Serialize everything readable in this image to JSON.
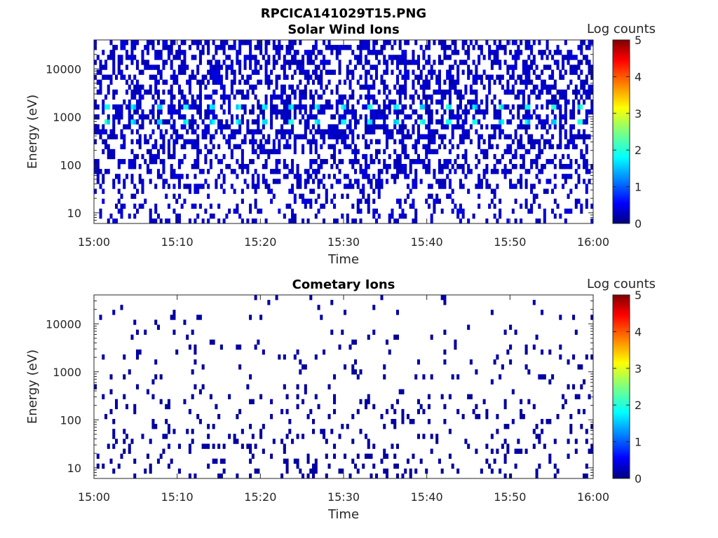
{
  "figure": {
    "title": "RPCICA141029T15.PNG"
  },
  "colorbar": {
    "label": "Log counts",
    "range": [
      0,
      5
    ],
    "ticks": [
      "0",
      "1",
      "2",
      "3",
      "4",
      "5"
    ]
  },
  "chart_data": [
    {
      "type": "heatmap",
      "title": "Solar Wind Ions",
      "xlabel": "Time",
      "ylabel": "Energy (eV)",
      "yscale": "log",
      "ylim": [
        6,
        40000
      ],
      "xlim": [
        "15:00",
        "16:00"
      ],
      "x_ticks": [
        "15:00",
        "15:10",
        "15:20",
        "15:30",
        "15:40",
        "15:50",
        "16:00"
      ],
      "y_ticks": [
        "10",
        "100",
        "1000",
        "10000"
      ],
      "y_tick_values": [
        10,
        100,
        1000,
        10000
      ],
      "peak_bands_eV": [
        1700,
        750
      ],
      "peak_log_counts": 2.0,
      "background_log_counts": 0.2
    },
    {
      "type": "heatmap",
      "title": "Cometary Ions",
      "xlabel": "Time",
      "ylabel": "Energy (eV)",
      "yscale": "log",
      "ylim": [
        6,
        40000
      ],
      "xlim": [
        "15:00",
        "16:00"
      ],
      "x_ticks": [
        "15:00",
        "15:10",
        "15:20",
        "15:30",
        "15:40",
        "15:50",
        "16:00"
      ],
      "y_ticks": [
        "10",
        "100",
        "1000",
        "10000"
      ],
      "y_tick_values": [
        10,
        100,
        1000,
        10000
      ],
      "peak_log_counts": 0.6,
      "background_log_counts": 0.1
    }
  ]
}
